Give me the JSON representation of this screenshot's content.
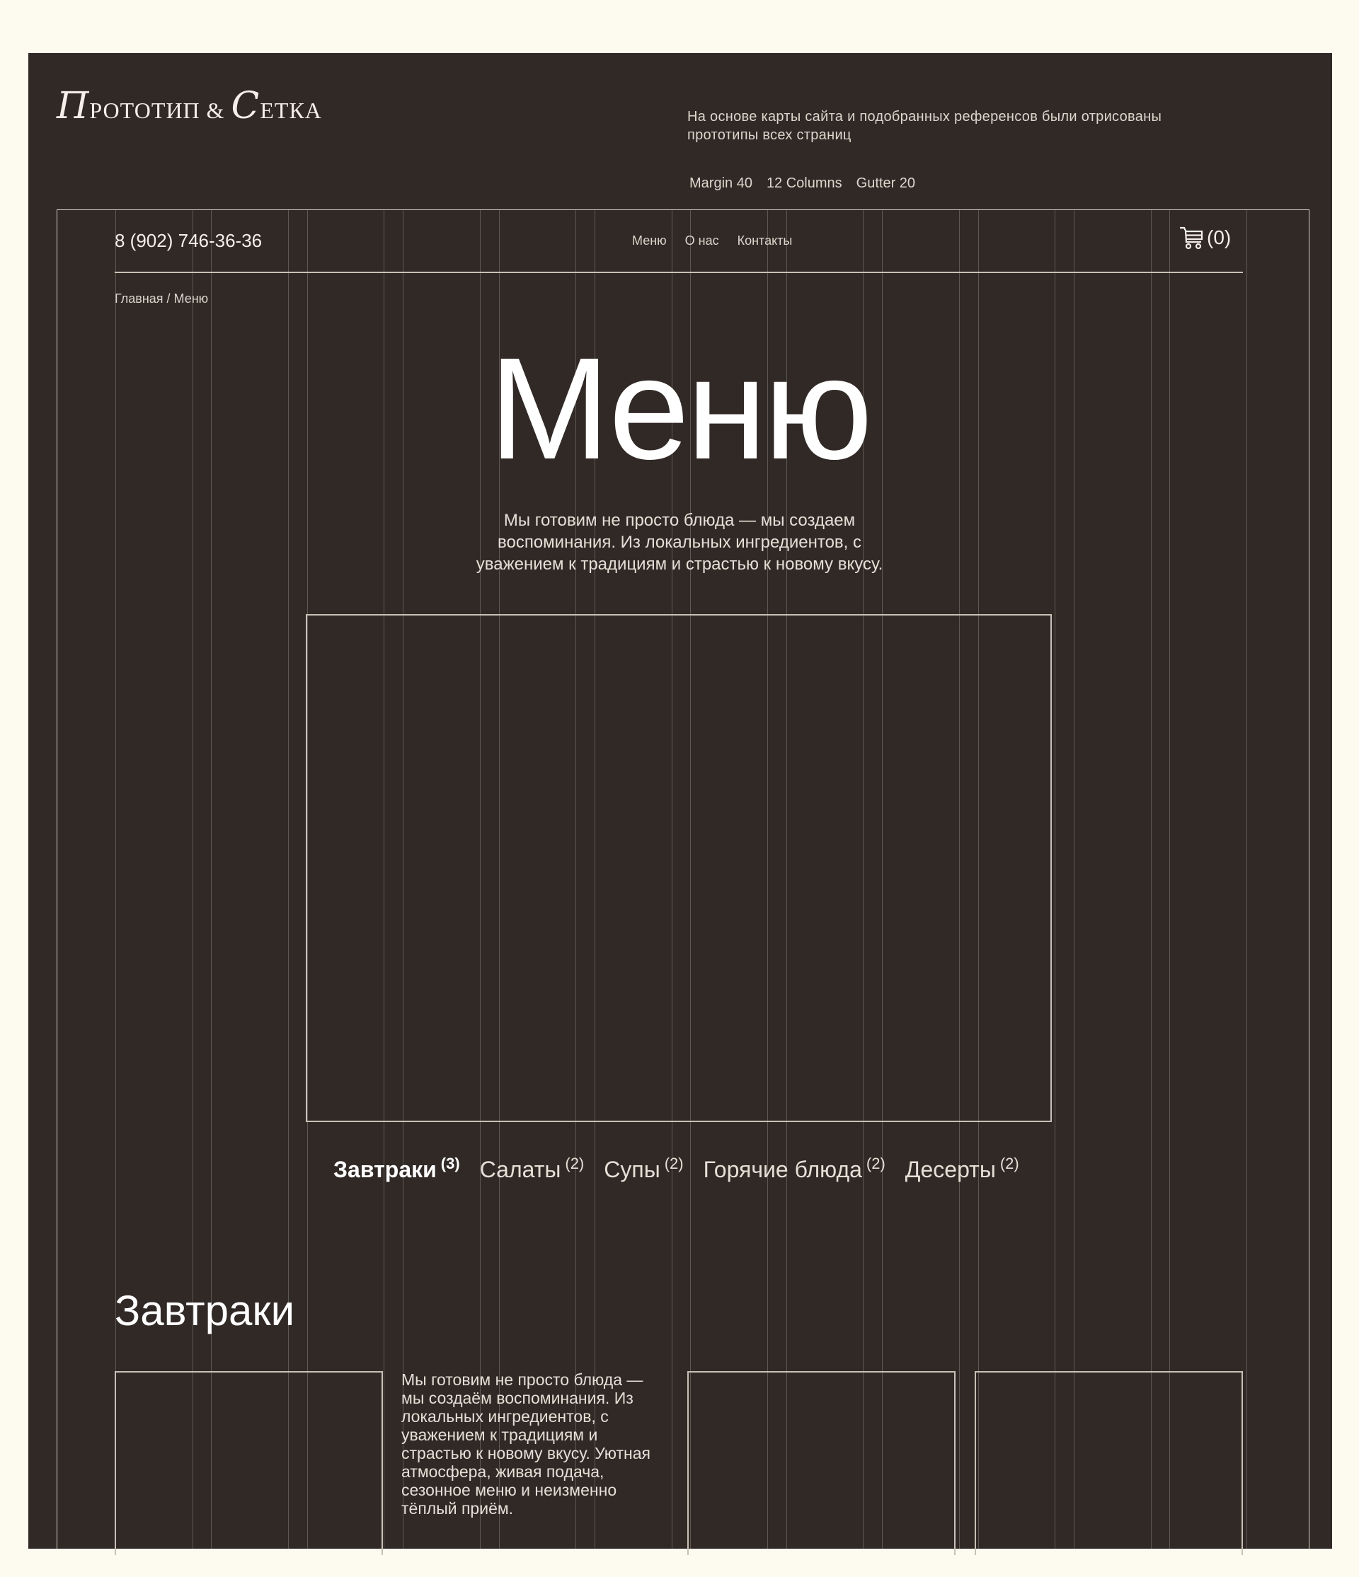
{
  "header": {
    "logo": {
      "first_cap": "П",
      "first_rest": "РОТОТИП",
      "amp": "&",
      "second_cap": "С",
      "second_rest": "ЕТКА"
    },
    "description": "На основе карты сайта и подобранных референсов были отрисованы прототипы всех страниц",
    "specs": [
      "Margin 40",
      "12 Columns",
      "Gutter 20"
    ]
  },
  "site": {
    "phone": "8 (902) 746-36-36",
    "nav": [
      "Меню",
      "О нас",
      "Контакты"
    ],
    "cart_count": "(0)",
    "breadcrumb": "Главная / Меню",
    "title": "Меню",
    "subtitle": "Мы готовим не просто блюда — мы создаем воспоминания. Из локальных ингредиентов, с уважением к традициям и страстью к новому вкусу.",
    "categories": [
      {
        "label": "Завтраки",
        "count": "(3)",
        "active": true
      },
      {
        "label": "Салаты",
        "count": "(2)"
      },
      {
        "label": "Супы",
        "count": "(2)"
      },
      {
        "label": "Горячие блюда",
        "count": "(2)"
      },
      {
        "label": "Десерты",
        "count": "(2)"
      }
    ],
    "section_title": "Завтраки",
    "section_text": "Мы готовим не просто блюда — мы создаём воспоминания. Из локальных ингредиентов, с уважением к традициям и страстью к новому вкусу. Уютная атмосфера, живая подача, сезонное меню и неизменно тёплый приём."
  },
  "colors": {
    "page_bg": "#fdfbf0",
    "panel_bg": "#312926",
    "text": "#f4efe8",
    "grid_line": "#d9d2c8"
  }
}
